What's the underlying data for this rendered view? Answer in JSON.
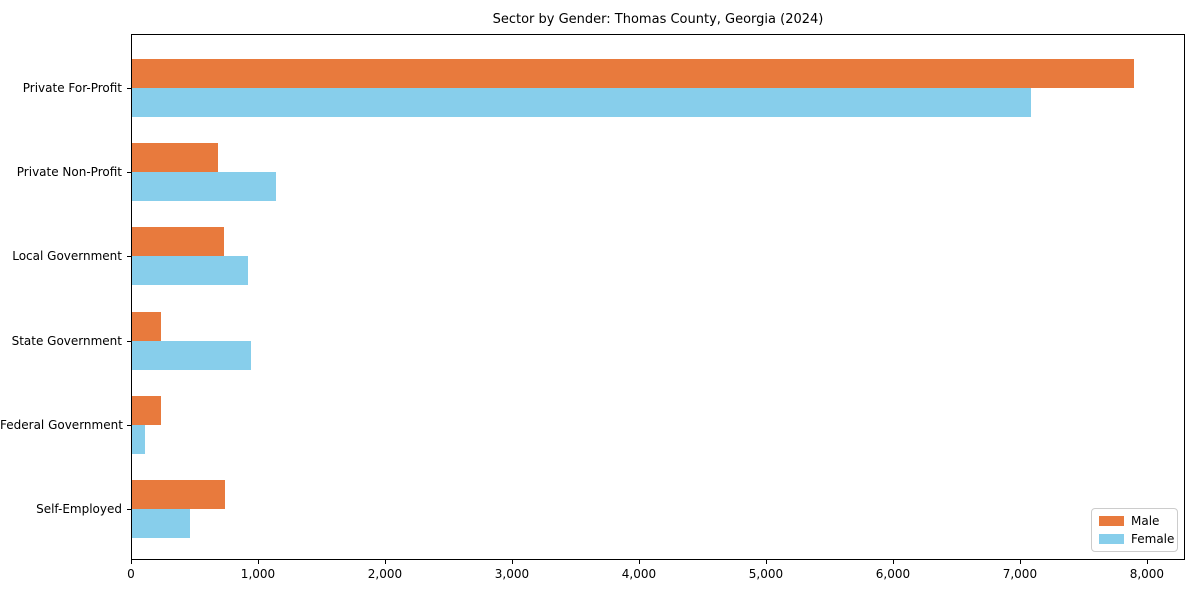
{
  "figure": {
    "title": "Sector by Gender: Thomas County, Georgia (2024)"
  },
  "chart_data": {
    "type": "bar",
    "orientation": "horizontal",
    "title": "Sector by Gender: Thomas County, Georgia (2024)",
    "categories": [
      "Private For-Profit",
      "Private Non-Profit",
      "Local Government",
      "State Government",
      "Federal Government",
      "Self-Employed"
    ],
    "series": [
      {
        "name": "Male",
        "color": "#e87a3d",
        "values": [
          7890,
          675,
          725,
          230,
          230,
          730
        ]
      },
      {
        "name": "Female",
        "color": "#87ceeb",
        "values": [
          7080,
          1135,
          910,
          935,
          100,
          460
        ]
      }
    ],
    "xlabel": "",
    "ylabel": "",
    "xlim": [
      0,
      8300
    ],
    "xticks": [
      0,
      1000,
      2000,
      3000,
      4000,
      5000,
      6000,
      7000,
      8000
    ],
    "xtick_labels": [
      "0",
      "1,000",
      "2,000",
      "3,000",
      "4,000",
      "5,000",
      "6,000",
      "7,000",
      "8,000"
    ],
    "grid": false,
    "legend_position": "lower right",
    "legend_labels": [
      "Male",
      "Female"
    ]
  }
}
